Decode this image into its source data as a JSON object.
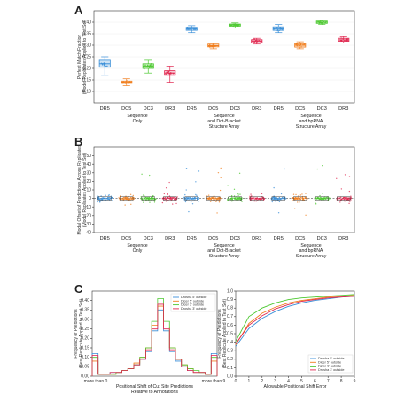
{
  "panels": {
    "a": "A",
    "b": "B",
    "c": "C"
  },
  "colors": {
    "DR5": "#3a8fd8",
    "DC5": "#f07d1c",
    "DC3": "#4cc830",
    "DR3": "#e0254e"
  },
  "chart_data": [
    {
      "panel": "A",
      "type": "box",
      "ylabel": "Perfect Match Fraction",
      "ylabel2": "(Model Replicates Applied to Test Set)",
      "ylim": [
        0.05,
        0.45
      ],
      "yticks": [
        0.1,
        0.15,
        0.2,
        0.25,
        0.3,
        0.35,
        0.4
      ],
      "groups": [
        {
          "label_lines": [
            "Sequence",
            "Only"
          ],
          "boxes": [
            {
              "cat": "DR5",
              "min": 0.17,
              "q1": 0.205,
              "median": 0.22,
              "q3": 0.235,
              "max": 0.25
            },
            {
              "cat": "DC5",
              "min": 0.125,
              "q1": 0.135,
              "median": 0.14,
              "q3": 0.145,
              "max": 0.155
            },
            {
              "cat": "DC3",
              "min": 0.18,
              "q1": 0.2,
              "median": 0.21,
              "q3": 0.22,
              "max": 0.235
            },
            {
              "cat": "DR3",
              "min": 0.14,
              "q1": 0.17,
              "median": 0.18,
              "q3": 0.19,
              "max": 0.21
            }
          ]
        },
        {
          "label_lines": [
            "Sequence",
            "and Dot-Bracket",
            "Structure Array"
          ],
          "boxes": [
            {
              "cat": "DR5",
              "min": 0.355,
              "q1": 0.365,
              "median": 0.372,
              "q3": 0.378,
              "max": 0.385
            },
            {
              "cat": "DC5",
              "min": 0.285,
              "q1": 0.293,
              "median": 0.298,
              "q3": 0.305,
              "max": 0.31
            },
            {
              "cat": "DC3",
              "min": 0.375,
              "q1": 0.383,
              "median": 0.388,
              "q3": 0.392,
              "max": 0.397
            },
            {
              "cat": "DR3",
              "min": 0.305,
              "q1": 0.31,
              "median": 0.318,
              "q3": 0.324,
              "max": 0.33
            }
          ]
        },
        {
          "label_lines": [
            "Sequence",
            "and bpRNA",
            "Structure Array"
          ],
          "boxes": [
            {
              "cat": "DR5",
              "min": 0.355,
              "q1": 0.365,
              "median": 0.372,
              "q3": 0.38,
              "max": 0.39
            },
            {
              "cat": "DC5",
              "min": 0.285,
              "q1": 0.292,
              "median": 0.3,
              "q3": 0.307,
              "max": 0.315
            },
            {
              "cat": "DC3",
              "min": 0.39,
              "q1": 0.395,
              "median": 0.4,
              "q3": 0.405,
              "max": 0.41
            },
            {
              "cat": "DR3",
              "min": 0.31,
              "q1": 0.317,
              "median": 0.323,
              "q3": 0.33,
              "max": 0.337
            }
          ]
        }
      ]
    },
    {
      "panel": "B",
      "type": "strip",
      "ylabel": "Modal Offset of Predictions Across Replicates",
      "ylabel2": "(Model Replicates Applied to Test Set)",
      "ylim": [
        -40,
        60
      ],
      "yticks": [
        -40,
        -30,
        -20,
        -10,
        0,
        10,
        20,
        30,
        40,
        50
      ],
      "reference_line": 0,
      "group_labels": [
        [
          "Sequence",
          "Only"
        ],
        [
          "Sequence",
          "and Dot-Bracket",
          "Structure Array"
        ],
        [
          "Sequence",
          "and bpRNA",
          "Structure Array"
        ]
      ],
      "categories": [
        "DR5",
        "DC5",
        "DC3",
        "DR3"
      ]
    },
    {
      "panel": "C-left",
      "type": "step-histogram",
      "ylabel": "Frequency of Predictions",
      "ylabel2": "(Best Replicate Applied to Test Set)",
      "xlabel": "Positional Shift of Cut Site Predictions",
      "xlabel2": "Relative to Annotations",
      "xtick_edges": [
        "more than 0",
        "more than 9"
      ],
      "ylim": [
        0,
        0.45
      ],
      "yticks": [
        0.0,
        0.05,
        0.1,
        0.15,
        0.2,
        0.25,
        0.3,
        0.35,
        0.4
      ],
      "legend": [
        "Drosha 5' outside",
        "Dicer 5' outside",
        "Dicer 3' outside",
        "Drosha 3' outside"
      ],
      "series": [
        {
          "name": "Drosha 5' outside",
          "values": [
            0.12,
            0.01,
            0.01,
            0.02,
            0.02,
            0.03,
            0.04,
            0.06,
            0.09,
            0.13,
            0.24,
            0.35,
            0.24,
            0.13,
            0.08,
            0.05,
            0.03,
            0.02,
            0.02,
            0.01,
            0.12
          ]
        },
        {
          "name": "Dicer 5' outside",
          "values": [
            0.08,
            0.01,
            0.01,
            0.01,
            0.02,
            0.03,
            0.04,
            0.07,
            0.1,
            0.15,
            0.27,
            0.37,
            0.26,
            0.15,
            0.09,
            0.06,
            0.04,
            0.02,
            0.02,
            0.01,
            0.08
          ]
        },
        {
          "name": "Dicer 3' outside",
          "values": [
            0.1,
            0.01,
            0.01,
            0.01,
            0.02,
            0.03,
            0.04,
            0.06,
            0.1,
            0.15,
            0.29,
            0.41,
            0.29,
            0.15,
            0.09,
            0.06,
            0.04,
            0.03,
            0.02,
            0.01,
            0.1
          ]
        },
        {
          "name": "Drosha 3' outside",
          "values": [
            0.11,
            0.01,
            0.01,
            0.02,
            0.02,
            0.03,
            0.04,
            0.06,
            0.09,
            0.14,
            0.25,
            0.38,
            0.25,
            0.14,
            0.09,
            0.05,
            0.03,
            0.02,
            0.02,
            0.01,
            0.11
          ]
        }
      ]
    },
    {
      "panel": "C-right",
      "type": "line",
      "ylabel": "Frequency of Predictions",
      "ylabel2": "(Best Replicate Applied to Test Set)",
      "xlabel": "Allowable Positional Shift Error",
      "xlim": [
        0,
        9
      ],
      "ylim": [
        0,
        1.0
      ],
      "xticks": [
        0,
        1,
        2,
        3,
        4,
        5,
        6,
        7,
        8,
        9
      ],
      "yticks": [
        0.0,
        0.1,
        0.2,
        0.3,
        0.4,
        0.5,
        0.6,
        0.7,
        0.8,
        0.9,
        1.0
      ],
      "legend": [
        "Drosha 5' outside",
        "Dicer 5' outside",
        "Dicer 3' outside",
        "Drosha 3' outside"
      ],
      "series": [
        {
          "name": "Drosha 5' outside",
          "x": [
            0,
            1,
            2,
            3,
            4,
            5,
            6,
            7,
            8,
            9
          ],
          "y": [
            0.35,
            0.56,
            0.68,
            0.76,
            0.82,
            0.86,
            0.89,
            0.91,
            0.93,
            0.94
          ]
        },
        {
          "name": "Dicer 5' outside",
          "x": [
            0,
            1,
            2,
            3,
            4,
            5,
            6,
            7,
            8,
            9
          ],
          "y": [
            0.37,
            0.62,
            0.74,
            0.81,
            0.86,
            0.89,
            0.91,
            0.93,
            0.94,
            0.95
          ]
        },
        {
          "name": "Dicer 3' outside",
          "x": [
            0,
            1,
            2,
            3,
            4,
            5,
            6,
            7,
            8,
            9
          ],
          "y": [
            0.41,
            0.7,
            0.8,
            0.86,
            0.9,
            0.92,
            0.93,
            0.94,
            0.95,
            0.96
          ]
        },
        {
          "name": "Drosha 3' outside",
          "x": [
            0,
            1,
            2,
            3,
            4,
            5,
            6,
            7,
            8,
            9
          ],
          "y": [
            0.38,
            0.6,
            0.71,
            0.79,
            0.84,
            0.88,
            0.9,
            0.92,
            0.93,
            0.94
          ]
        }
      ]
    }
  ]
}
